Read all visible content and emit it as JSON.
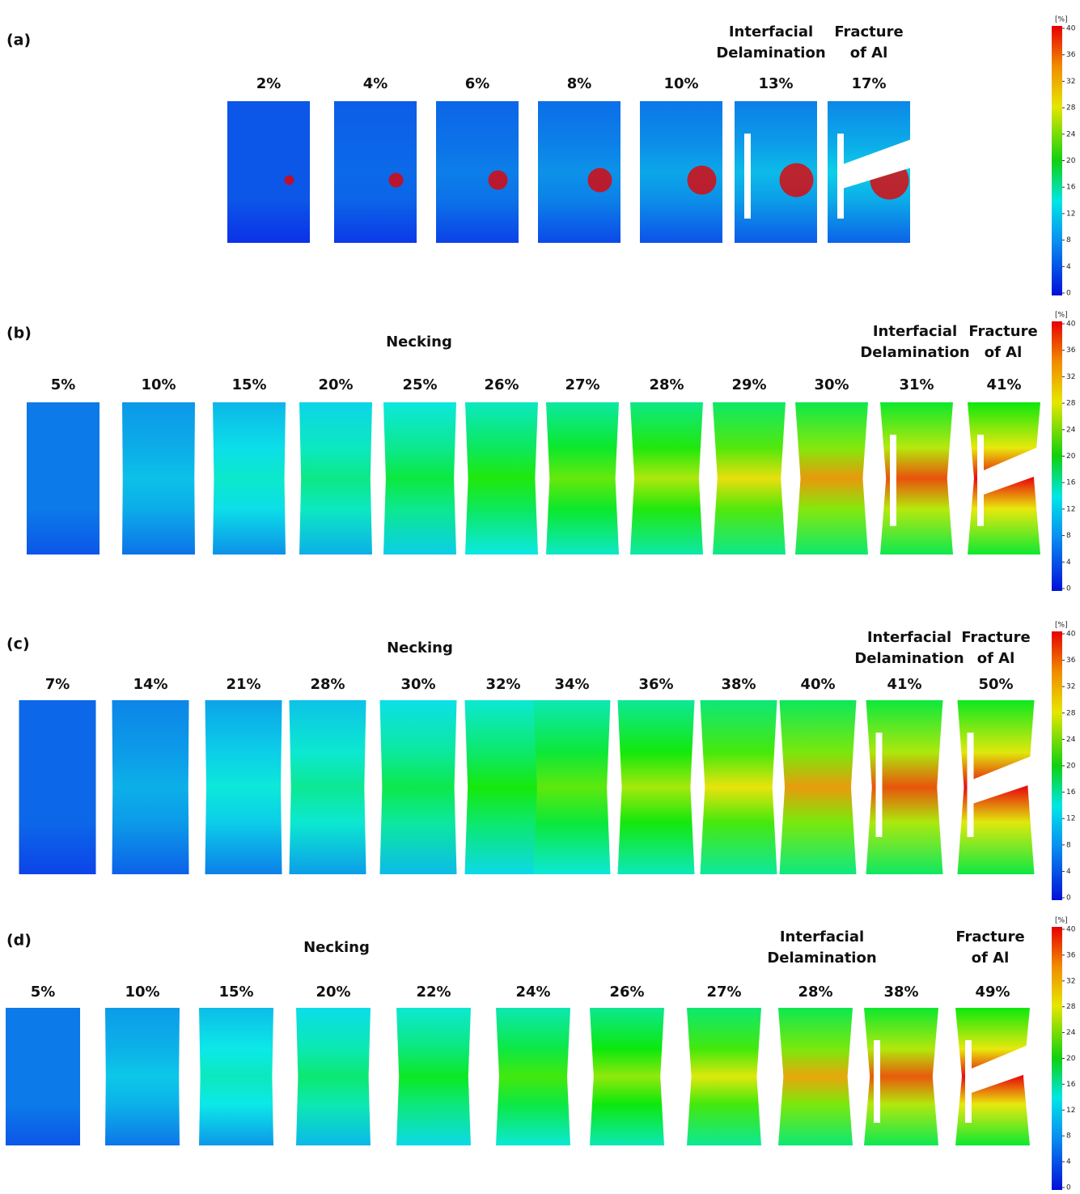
{
  "panels": [
    {
      "label": "(a)",
      "strains": [
        "2%",
        "4%",
        "6%",
        "8%",
        "10%",
        "13%",
        "17%"
      ],
      "annotations": [
        {
          "lines": [
            "Interfacial",
            "Delamination"
          ]
        },
        {
          "lines": [
            "Fracture",
            "of Al"
          ]
        }
      ]
    },
    {
      "label": "(b)",
      "strains": [
        "5%",
        "10%",
        "15%",
        "20%",
        "25%",
        "26%",
        "27%",
        "28%",
        "29%",
        "30%",
        "31%",
        "41%"
      ],
      "annotations": [
        {
          "lines": [
            "Necking"
          ]
        },
        {
          "lines": [
            "Interfacial",
            "Delamination"
          ]
        },
        {
          "lines": [
            "Fracture",
            "of Al"
          ]
        }
      ]
    },
    {
      "label": "(c)",
      "strains": [
        "7%",
        "14%",
        "21%",
        "28%",
        "30%",
        "32%",
        "34%",
        "36%",
        "38%",
        "40%",
        "41%",
        "50%"
      ],
      "annotations": [
        {
          "lines": [
            "Necking"
          ]
        },
        {
          "lines": [
            "Interfacial",
            "Delamination"
          ]
        },
        {
          "lines": [
            "Fracture",
            "of Al"
          ]
        }
      ]
    },
    {
      "label": "(d)",
      "strains": [
        "5%",
        "10%",
        "15%",
        "20%",
        "22%",
        "24%",
        "26%",
        "27%",
        "28%",
        "38%",
        "49%"
      ],
      "annotations": [
        {
          "lines": [
            "Necking"
          ]
        },
        {
          "lines": [
            "Interfacial",
            "Delamination"
          ]
        },
        {
          "lines": [
            "Fracture",
            "of Al"
          ]
        }
      ]
    }
  ],
  "colorbar": {
    "unit": "[%]",
    "ticks": [
      "0",
      "4",
      "8",
      "12",
      "16",
      "20",
      "24",
      "28",
      "32",
      "36",
      "40"
    ]
  }
}
